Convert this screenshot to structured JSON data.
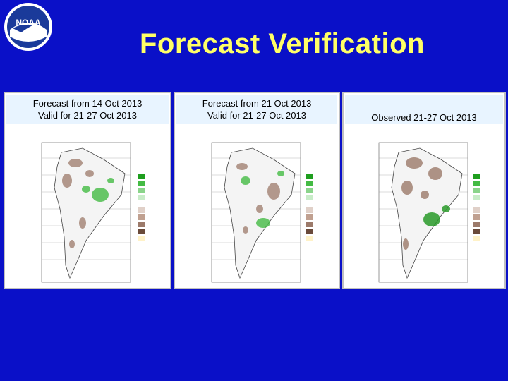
{
  "title": "Forecast Verification",
  "logo": {
    "text": "NOAA"
  },
  "panels": [
    {
      "caption_line1": "Forecast from 14 Oct 2013",
      "caption_line2": "Valid for 21-27 Oct 2013"
    },
    {
      "caption_line1": "Forecast from 21 Oct 2013",
      "caption_line2": "Valid for 21-27 Oct 2013"
    },
    {
      "caption_line1": "Observed 21-27 Oct 2013"
    }
  ],
  "colors": {
    "background": "#0a10c8",
    "title": "#ffff66",
    "wet": "#44bb44",
    "dry": "#9c7a6a"
  }
}
